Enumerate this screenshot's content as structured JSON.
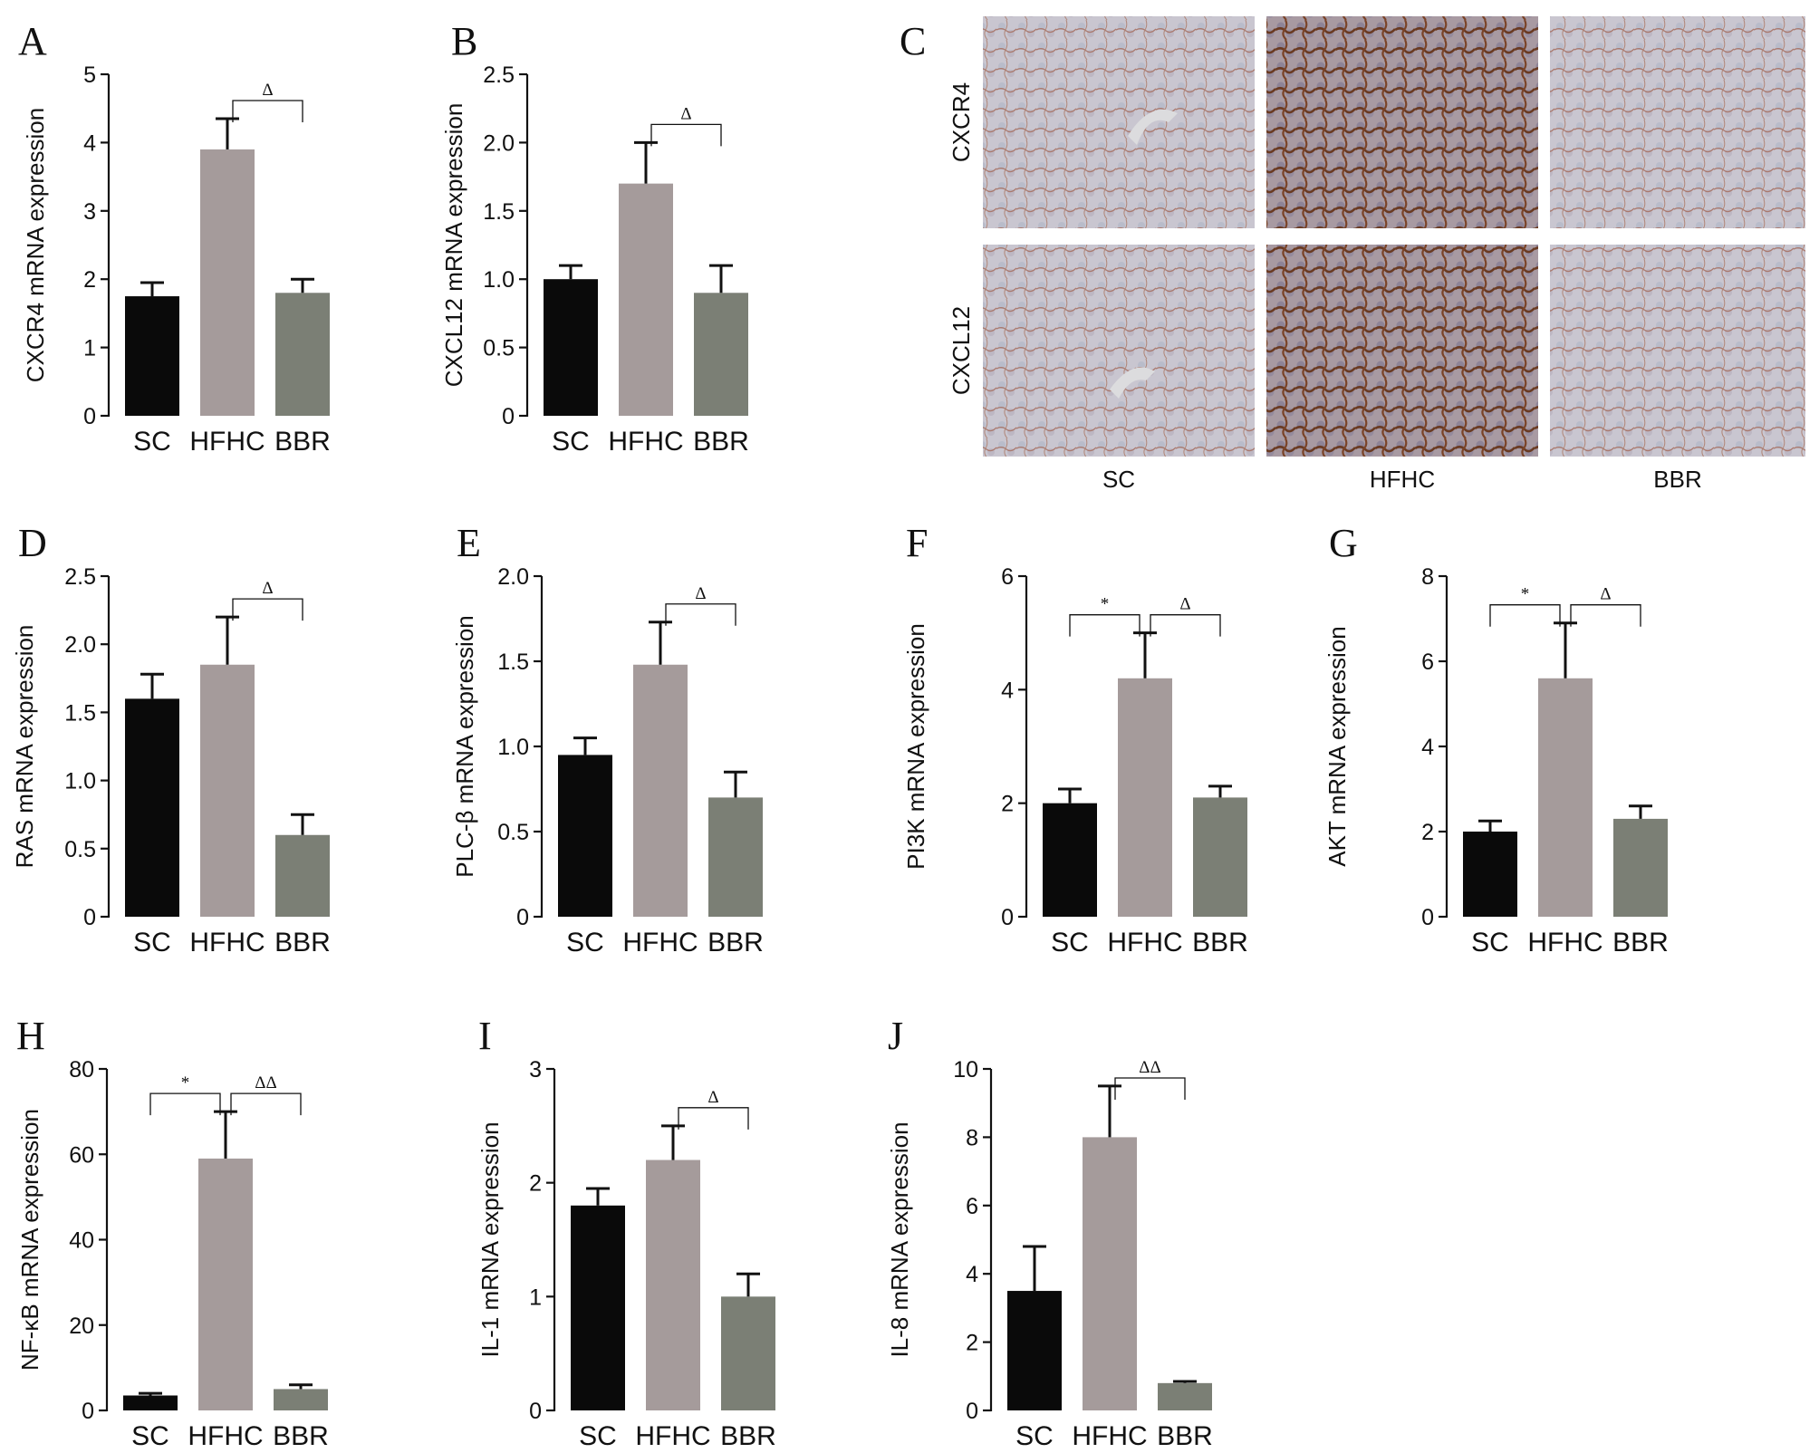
{
  "colors": {
    "SC": "#0a0a0a",
    "HFHC": "#a59b9b",
    "BBR": "#7b7f75",
    "axis": "#111111"
  },
  "panel_c": {
    "label": "C",
    "rows": [
      "CXCR4",
      "CXCL12"
    ],
    "columns": [
      "SC",
      "HFHC",
      "BBR"
    ]
  },
  "chart_data": [
    {
      "type": "bar",
      "panel": "A",
      "ylabel": "CXCR4 mRNA expression",
      "categories": [
        "SC",
        "HFHC",
        "BBR"
      ],
      "values": [
        1.75,
        3.9,
        1.8
      ],
      "errors": [
        0.2,
        0.45,
        0.2
      ],
      "ylim": [
        0,
        5
      ],
      "yticks": [
        "0",
        "1",
        "2",
        "3",
        "4",
        "5"
      ],
      "brackets": [
        {
          "from": 1,
          "to": 2,
          "symbol": "Δ"
        }
      ]
    },
    {
      "type": "bar",
      "panel": "B",
      "ylabel": "CXCL12 mRNA expression",
      "categories": [
        "SC",
        "HFHC",
        "BBR"
      ],
      "values": [
        1.0,
        1.7,
        0.9
      ],
      "errors": [
        0.1,
        0.3,
        0.2
      ],
      "ylim": [
        0,
        2.5
      ],
      "yticks": [
        "0",
        "0.5",
        "1.0",
        "1.5",
        "2.0",
        "2.5"
      ],
      "brackets": [
        {
          "from": 1,
          "to": 2,
          "symbol": "Δ"
        }
      ]
    },
    {
      "type": "bar",
      "panel": "D",
      "ylabel": "RAS mRNA expression",
      "categories": [
        "SC",
        "HFHC",
        "BBR"
      ],
      "values": [
        1.6,
        1.85,
        0.6
      ],
      "errors": [
        0.18,
        0.35,
        0.15
      ],
      "ylim": [
        0,
        2.5
      ],
      "yticks": [
        "0",
        "0.5",
        "1.0",
        "1.5",
        "2.0",
        "2.5"
      ],
      "brackets": [
        {
          "from": 1,
          "to": 2,
          "symbol": "Δ"
        }
      ]
    },
    {
      "type": "bar",
      "panel": "E",
      "ylabel": "PLC-β mRNA expression",
      "categories": [
        "SC",
        "HFHC",
        "BBR"
      ],
      "values": [
        0.95,
        1.48,
        0.7
      ],
      "errors": [
        0.1,
        0.25,
        0.15
      ],
      "ylim": [
        0,
        2.0
      ],
      "yticks": [
        "0",
        "0.5",
        "1.0",
        "1.5",
        "2.0"
      ],
      "brackets": [
        {
          "from": 1,
          "to": 2,
          "symbol": "Δ"
        }
      ]
    },
    {
      "type": "bar",
      "panel": "F",
      "ylabel": "PI3K mRNA expression",
      "categories": [
        "SC",
        "HFHC",
        "BBR"
      ],
      "values": [
        2.0,
        4.2,
        2.1
      ],
      "errors": [
        0.25,
        0.8,
        0.2
      ],
      "ylim": [
        0,
        6
      ],
      "yticks": [
        "0",
        "2",
        "4",
        "6"
      ],
      "brackets": [
        {
          "from": 0,
          "to": 1,
          "symbol": "*"
        },
        {
          "from": 1,
          "to": 2,
          "symbol": "Δ"
        }
      ]
    },
    {
      "type": "bar",
      "panel": "G",
      "ylabel": "AKT mRNA expression",
      "categories": [
        "SC",
        "HFHC",
        "BBR"
      ],
      "values": [
        2.0,
        5.6,
        2.3
      ],
      "errors": [
        0.25,
        1.3,
        0.3
      ],
      "ylim": [
        0,
        8
      ],
      "yticks": [
        "0",
        "2",
        "4",
        "6",
        "8"
      ],
      "brackets": [
        {
          "from": 0,
          "to": 1,
          "symbol": "*"
        },
        {
          "from": 1,
          "to": 2,
          "symbol": "Δ"
        }
      ]
    },
    {
      "type": "bar",
      "panel": "H",
      "ylabel": "NF-κB mRNA expression",
      "categories": [
        "SC",
        "HFHC",
        "BBR"
      ],
      "values": [
        3.5,
        59,
        5.0
      ],
      "errors": [
        0.5,
        11,
        1.0
      ],
      "ylim": [
        0,
        80
      ],
      "yticks": [
        "0",
        "20",
        "40",
        "60",
        "80"
      ],
      "brackets": [
        {
          "from": 0,
          "to": 1,
          "symbol": "*"
        },
        {
          "from": 1,
          "to": 2,
          "symbol": "ΔΔ"
        }
      ]
    },
    {
      "type": "bar",
      "panel": "I",
      "ylabel": "IL-1 mRNA expression",
      "categories": [
        "SC",
        "HFHC",
        "BBR"
      ],
      "values": [
        1.8,
        2.2,
        1.0
      ],
      "errors": [
        0.15,
        0.3,
        0.2
      ],
      "ylim": [
        0,
        3
      ],
      "yticks": [
        "0",
        "1",
        "2",
        "3"
      ],
      "brackets": [
        {
          "from": 1,
          "to": 2,
          "symbol": "Δ"
        }
      ]
    },
    {
      "type": "bar",
      "panel": "J",
      "ylabel": "IL-8 mRNA expression",
      "categories": [
        "SC",
        "HFHC",
        "BBR"
      ],
      "values": [
        3.5,
        8.0,
        0.8
      ],
      "errors": [
        1.3,
        1.5,
        0.05
      ],
      "ylim": [
        0,
        10
      ],
      "yticks": [
        "0",
        "2",
        "4",
        "6",
        "8",
        "10"
      ],
      "brackets": [
        {
          "from": 1,
          "to": 2,
          "symbol": "ΔΔ"
        }
      ]
    }
  ]
}
